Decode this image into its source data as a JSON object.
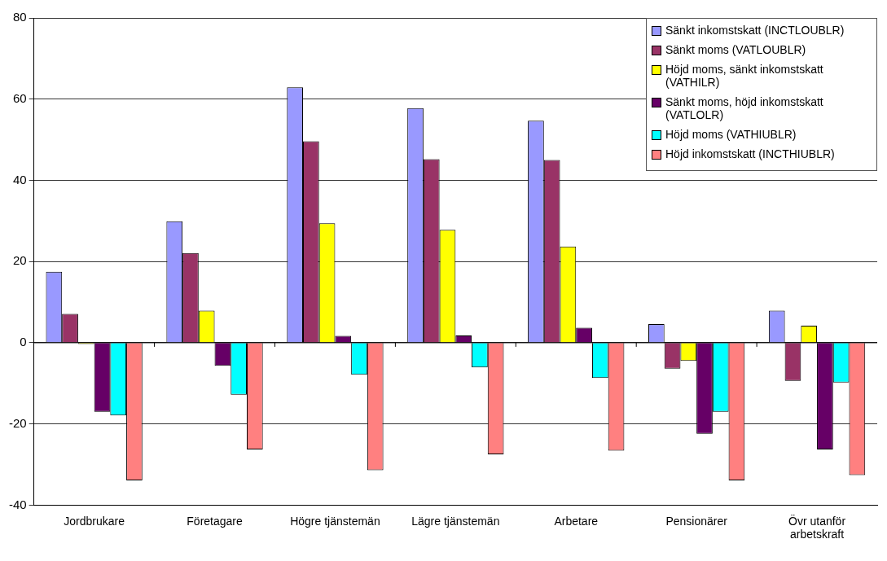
{
  "chart_data": {
    "type": "bar",
    "categories": [
      "Jordbrukare",
      "Företagare",
      "Högre tjänstemän",
      "Lägre tjänstemän",
      "Arbetare",
      "Pensionärer",
      "Övr utanför arbetskraft"
    ],
    "series": [
      {
        "name": "Sänkt inkomstskatt (INCTLOUBLR)",
        "color": "#9999ff",
        "values": [
          17.5,
          29.9,
          62.9,
          57.8,
          54.7,
          4.6,
          7.9
        ]
      },
      {
        "name": "Sänkt moms (VATLOUBLR)",
        "color": "#993366",
        "values": [
          7.1,
          22.1,
          49.6,
          45.2,
          45.0,
          -6.4,
          -9.4
        ]
      },
      {
        "name": "Höjd moms, sänkt inkomstskatt (VATHILR)",
        "color": "#ffff00",
        "values": [
          -0.3,
          7.9,
          29.4,
          27.8,
          23.7,
          -4.5,
          4.2
        ]
      },
      {
        "name": "Sänkt moms, höjd inkomstskatt (VATLOLR)",
        "color": "#660066",
        "values": [
          -17.0,
          -5.7,
          1.7,
          1.8,
          3.7,
          -22.4,
          -26.3
        ]
      },
      {
        "name": "Höjd moms (VATHIUBLR)",
        "color": "#00ffff",
        "values": [
          -17.9,
          -12.8,
          -7.9,
          -6.1,
          -8.7,
          -17.0,
          -9.8
        ]
      },
      {
        "name": "Höjd inkomstskatt (INCTHIUBLR)",
        "color": "#ff8080",
        "values": [
          -33.9,
          -26.3,
          -31.4,
          -27.5,
          -26.6,
          -33.9,
          -32.6
        ]
      }
    ],
    "ylim": [
      -40,
      80
    ],
    "yticks": [
      -40,
      -20,
      0,
      20,
      40,
      60,
      80
    ],
    "grid": "y",
    "legend": "top right"
  }
}
